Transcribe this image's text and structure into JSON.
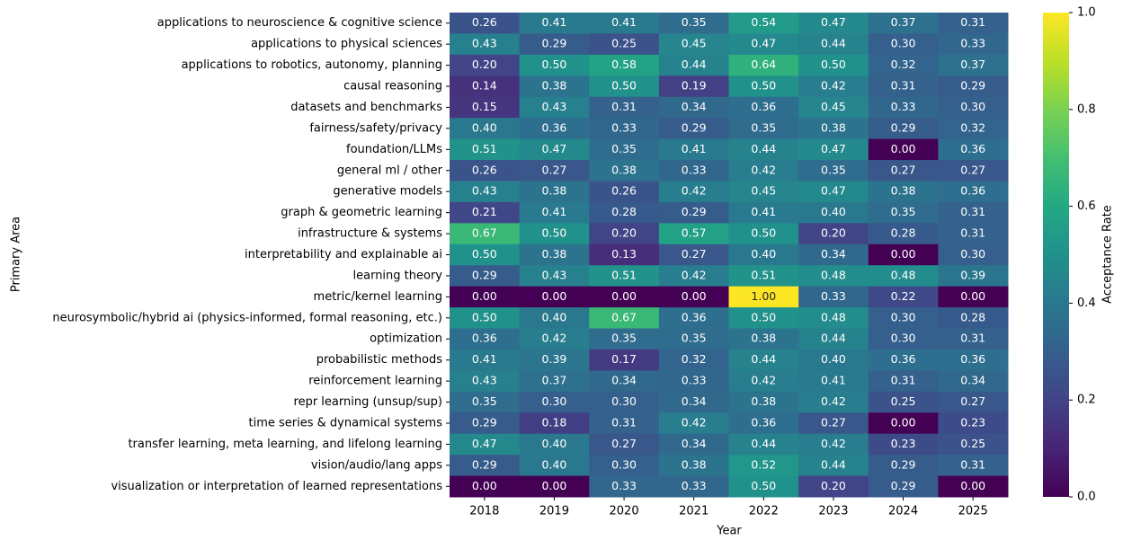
{
  "chart_data": {
    "type": "heatmap",
    "xlabel": "Year",
    "ylabel": "Primary Area",
    "colorbar_label": "Acceptance Rate",
    "colormap": "viridis",
    "clim": [
      0,
      1
    ],
    "cticks": [
      {
        "value": 0,
        "label": "0.0"
      },
      0.2,
      0.4,
      0.6,
      0.8,
      {
        "value": 1,
        "label": "1.0"
      }
    ],
    "x": [
      "2018",
      "2019",
      "2020",
      "2021",
      "2022",
      "2023",
      "2024",
      "2025"
    ],
    "categories": [
      "applications to neuroscience & cognitive science",
      "applications to physical sciences",
      "applications to robotics, autonomy, planning",
      "causal reasoning",
      "datasets and benchmarks",
      "fairness/safety/privacy",
      "foundation/LLMs",
      "general ml / other",
      "generative models",
      "graph & geometric learning",
      "infrastructure & systems",
      "interpretability and explainable ai",
      "learning theory",
      "metric/kernel learning",
      "neurosymbolic/hybrid ai (physics-informed, formal reasoning, etc.)",
      "optimization",
      "probabilistic methods",
      "reinforcement learning",
      "repr learning (unsup/sup)",
      "time series & dynamical systems",
      "transfer learning, meta learning, and lifelong learning",
      "vision/audio/lang apps",
      "visualization or interpretation of learned representations"
    ],
    "values": [
      [
        0.26,
        0.41,
        0.41,
        0.35,
        0.54,
        0.47,
        0.37,
        0.31
      ],
      [
        0.43,
        0.29,
        0.25,
        0.45,
        0.47,
        0.44,
        0.3,
        0.33
      ],
      [
        0.2,
        0.5,
        0.58,
        0.44,
        0.64,
        0.5,
        0.32,
        0.37
      ],
      [
        0.14,
        0.38,
        0.5,
        0.19,
        0.5,
        0.42,
        0.31,
        0.29
      ],
      [
        0.15,
        0.43,
        0.31,
        0.34,
        0.36,
        0.45,
        0.33,
        0.3
      ],
      [
        0.4,
        0.36,
        0.33,
        0.29,
        0.35,
        0.38,
        0.29,
        0.32
      ],
      [
        0.51,
        0.47,
        0.35,
        0.41,
        0.44,
        0.47,
        0,
        0.36
      ],
      [
        0.26,
        0.27,
        0.38,
        0.33,
        0.42,
        0.35,
        0.27,
        0.27
      ],
      [
        0.43,
        0.38,
        0.26,
        0.42,
        0.45,
        0.47,
        0.38,
        0.36
      ],
      [
        0.21,
        0.41,
        0.28,
        0.29,
        0.41,
        0.4,
        0.35,
        0.31
      ],
      [
        0.67,
        0.5,
        0.2,
        0.57,
        0.5,
        0.2,
        0.28,
        0.31
      ],
      [
        0.5,
        0.38,
        0.13,
        0.27,
        0.4,
        0.34,
        0,
        0.3
      ],
      [
        0.29,
        0.43,
        0.51,
        0.42,
        0.51,
        0.48,
        0.48,
        0.39
      ],
      [
        0,
        0,
        0,
        0,
        1,
        0.33,
        0.22,
        0
      ],
      [
        0.5,
        0.4,
        0.67,
        0.36,
        0.5,
        0.48,
        0.3,
        0.28
      ],
      [
        0.36,
        0.42,
        0.35,
        0.35,
        0.38,
        0.44,
        0.3,
        0.31
      ],
      [
        0.41,
        0.39,
        0.17,
        0.32,
        0.44,
        0.4,
        0.36,
        0.36
      ],
      [
        0.43,
        0.37,
        0.34,
        0.33,
        0.42,
        0.41,
        0.31,
        0.34
      ],
      [
        0.35,
        0.3,
        0.3,
        0.34,
        0.38,
        0.42,
        0.25,
        0.27
      ],
      [
        0.29,
        0.18,
        0.31,
        0.42,
        0.36,
        0.27,
        0,
        0.23
      ],
      [
        0.47,
        0.4,
        0.27,
        0.34,
        0.44,
        0.42,
        0.23,
        0.25
      ],
      [
        0.29,
        0.4,
        0.3,
        0.38,
        0.52,
        0.44,
        0.29,
        0.31
      ],
      [
        0,
        0,
        0.33,
        0.33,
        0.5,
        0.2,
        0.29,
        0
      ]
    ],
    "value_labels": [
      [
        "0.26",
        "0.41",
        "0.41",
        "0.35",
        "0.54",
        "0.47",
        "0.37",
        "0.31"
      ],
      [
        "0.43",
        "0.29",
        "0.25",
        "0.45",
        "0.47",
        "0.44",
        "0.30",
        "0.33"
      ],
      [
        "0.20",
        "0.50",
        "0.58",
        "0.44",
        "0.64",
        "0.50",
        "0.32",
        "0.37"
      ],
      [
        "0.14",
        "0.38",
        "0.50",
        "0.19",
        "0.50",
        "0.42",
        "0.31",
        "0.29"
      ],
      [
        "0.15",
        "0.43",
        "0.31",
        "0.34",
        "0.36",
        "0.45",
        "0.33",
        "0.30"
      ],
      [
        "0.40",
        "0.36",
        "0.33",
        "0.29",
        "0.35",
        "0.38",
        "0.29",
        "0.32"
      ],
      [
        "0.51",
        "0.47",
        "0.35",
        "0.41",
        "0.44",
        "0.47",
        "0.00",
        "0.36"
      ],
      [
        "0.26",
        "0.27",
        "0.38",
        "0.33",
        "0.42",
        "0.35",
        "0.27",
        "0.27"
      ],
      [
        "0.43",
        "0.38",
        "0.26",
        "0.42",
        "0.45",
        "0.47",
        "0.38",
        "0.36"
      ],
      [
        "0.21",
        "0.41",
        "0.28",
        "0.29",
        "0.41",
        "0.40",
        "0.35",
        "0.31"
      ],
      [
        "0.67",
        "0.50",
        "0.20",
        "0.57",
        "0.50",
        "0.20",
        "0.28",
        "0.31"
      ],
      [
        "0.50",
        "0.38",
        "0.13",
        "0.27",
        "0.40",
        "0.34",
        "0.00",
        "0.30"
      ],
      [
        "0.29",
        "0.43",
        "0.51",
        "0.42",
        "0.51",
        "0.48",
        "0.48",
        "0.39"
      ],
      [
        "0.00",
        "0.00",
        "0.00",
        "0.00",
        "1.00",
        "0.33",
        "0.22",
        "0.00"
      ],
      [
        "0.50",
        "0.40",
        "0.67",
        "0.36",
        "0.50",
        "0.48",
        "0.30",
        "0.28"
      ],
      [
        "0.36",
        "0.42",
        "0.35",
        "0.35",
        "0.38",
        "0.44",
        "0.30",
        "0.31"
      ],
      [
        "0.41",
        "0.39",
        "0.17",
        "0.32",
        "0.44",
        "0.40",
        "0.36",
        "0.36"
      ],
      [
        "0.43",
        "0.37",
        "0.34",
        "0.33",
        "0.42",
        "0.41",
        "0.31",
        "0.34"
      ],
      [
        "0.35",
        "0.30",
        "0.30",
        "0.34",
        "0.38",
        "0.42",
        "0.25",
        "0.27"
      ],
      [
        "0.29",
        "0.18",
        "0.31",
        "0.42",
        "0.36",
        "0.27",
        "0.00",
        "0.23"
      ],
      [
        "0.47",
        "0.40",
        "0.27",
        "0.34",
        "0.44",
        "0.42",
        "0.23",
        "0.25"
      ],
      [
        "0.29",
        "0.40",
        "0.30",
        "0.38",
        "0.52",
        "0.44",
        "0.29",
        "0.31"
      ],
      [
        "0.00",
        "0.00",
        "0.33",
        "0.33",
        "0.50",
        "0.20",
        "0.29",
        "0.00"
      ]
    ]
  }
}
